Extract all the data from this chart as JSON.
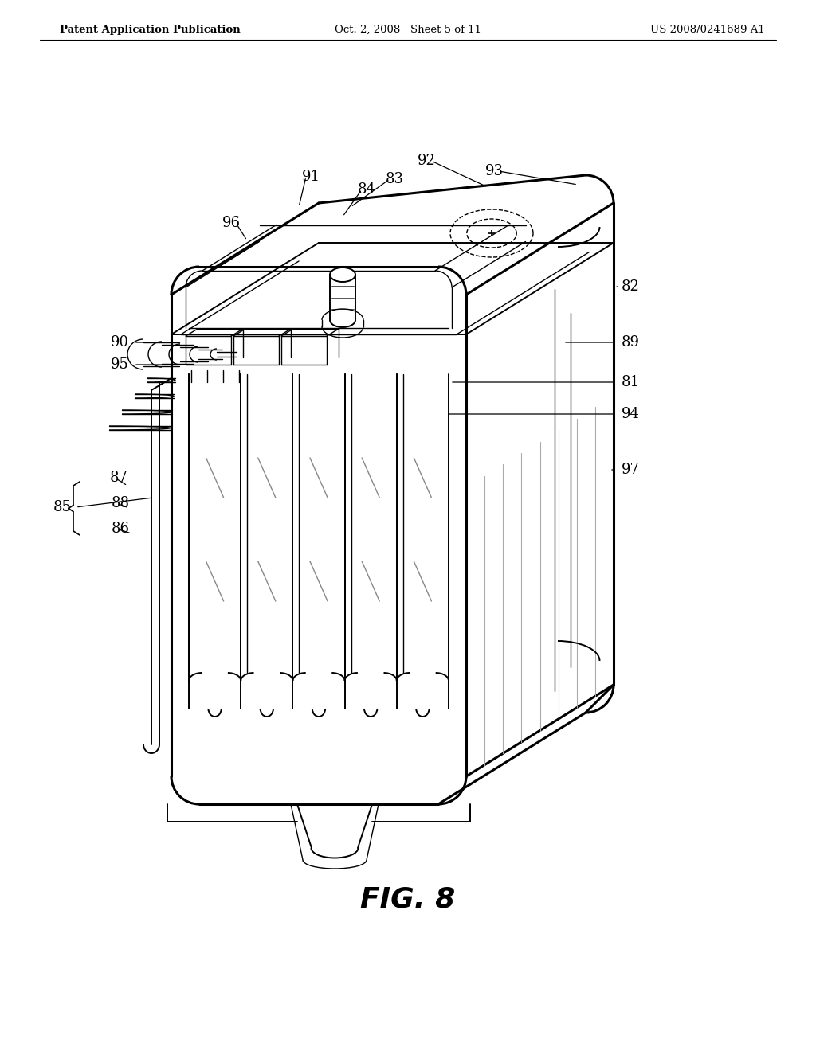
{
  "header_left": "Patent Application Publication",
  "header_center": "Oct. 2, 2008   Sheet 5 of 11",
  "header_right": "US 2008/0241689 A1",
  "figure_label": "FIG. 8",
  "background_color": "#ffffff",
  "line_color": "#000000"
}
